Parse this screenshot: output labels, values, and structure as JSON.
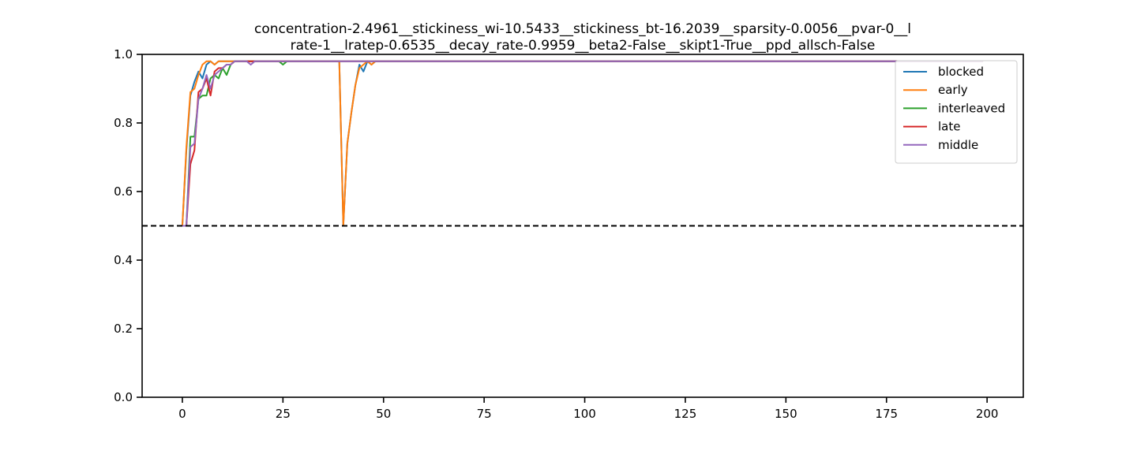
{
  "chart_data": {
    "type": "line",
    "title_lines": [
      "concentration-2.4961__stickiness_wi-10.5433__stickiness_bt-16.2039__sparsity-0.0056__pvar-0__l",
      "rate-1__lratep-0.6535__decay_rate-0.9959__beta2-False__skipt1-True__ppd_allsch-False"
    ],
    "xlabel": "",
    "ylabel": "",
    "xlim": [
      -10,
      209
    ],
    "ylim": [
      0,
      1
    ],
    "x_ticks": [
      0,
      25,
      50,
      75,
      100,
      125,
      150,
      175,
      200
    ],
    "y_ticks": [
      0.0,
      0.2,
      0.4,
      0.6,
      0.8,
      1.0
    ],
    "x_tick_labels": [
      "0",
      "25",
      "50",
      "75",
      "100",
      "125",
      "150",
      "175",
      "200"
    ],
    "y_tick_labels": [
      "0.0",
      "0.2",
      "0.4",
      "0.6",
      "0.8",
      "1.0"
    ],
    "grid": false,
    "legend_position": "top-right",
    "reference_line": {
      "y": 0.5,
      "style": "dashed",
      "color": "#000000"
    },
    "series": [
      {
        "name": "blocked",
        "color": "#1f77b4",
        "points": [
          [
            0,
            0.5
          ],
          [
            1,
            0.72
          ],
          [
            2,
            0.88
          ],
          [
            3,
            0.92
          ],
          [
            4,
            0.95
          ],
          [
            5,
            0.93
          ],
          [
            6,
            0.97
          ],
          [
            7,
            0.98
          ],
          [
            8,
            0.97
          ],
          [
            9,
            0.98
          ],
          [
            10,
            0.98
          ],
          [
            12,
            0.98
          ],
          [
            15,
            0.98
          ],
          [
            20,
            0.98
          ],
          [
            25,
            0.98
          ],
          [
            30,
            0.98
          ],
          [
            35,
            0.98
          ],
          [
            39,
            0.98
          ],
          [
            40,
            0.5
          ],
          [
            41,
            0.74
          ],
          [
            42,
            0.83
          ],
          [
            43,
            0.91
          ],
          [
            44,
            0.97
          ],
          [
            45,
            0.95
          ],
          [
            46,
            0.98
          ],
          [
            47,
            0.97
          ],
          [
            48,
            0.98
          ],
          [
            60,
            0.98
          ],
          [
            100,
            0.98
          ],
          [
            150,
            0.98
          ],
          [
            199,
            0.98
          ]
        ]
      },
      {
        "name": "early",
        "color": "#ff7f0e",
        "points": [
          [
            0,
            0.5
          ],
          [
            1,
            0.73
          ],
          [
            2,
            0.89
          ],
          [
            3,
            0.9
          ],
          [
            4,
            0.94
          ],
          [
            5,
            0.97
          ],
          [
            6,
            0.98
          ],
          [
            7,
            0.98
          ],
          [
            8,
            0.97
          ],
          [
            9,
            0.98
          ],
          [
            10,
            0.98
          ],
          [
            12,
            0.98
          ],
          [
            15,
            0.98
          ],
          [
            20,
            0.98
          ],
          [
            25,
            0.98
          ],
          [
            30,
            0.98
          ],
          [
            35,
            0.98
          ],
          [
            39,
            0.98
          ],
          [
            40,
            0.5
          ],
          [
            41,
            0.74
          ],
          [
            42,
            0.83
          ],
          [
            43,
            0.91
          ],
          [
            44,
            0.96
          ],
          [
            45,
            0.97
          ],
          [
            46,
            0.98
          ],
          [
            47,
            0.97
          ],
          [
            48,
            0.98
          ],
          [
            60,
            0.98
          ],
          [
            100,
            0.98
          ],
          [
            150,
            0.98
          ],
          [
            199,
            0.98
          ]
        ]
      },
      {
        "name": "interleaved",
        "color": "#2ca02c",
        "points": [
          [
            0,
            0.5
          ],
          [
            1,
            0.5
          ],
          [
            2,
            0.76
          ],
          [
            3,
            0.76
          ],
          [
            4,
            0.87
          ],
          [
            5,
            0.88
          ],
          [
            6,
            0.88
          ],
          [
            7,
            0.93
          ],
          [
            8,
            0.94
          ],
          [
            9,
            0.93
          ],
          [
            10,
            0.96
          ],
          [
            11,
            0.94
          ],
          [
            12,
            0.97
          ],
          [
            13,
            0.98
          ],
          [
            15,
            0.98
          ],
          [
            20,
            0.98
          ],
          [
            24,
            0.98
          ],
          [
            25,
            0.97
          ],
          [
            26,
            0.98
          ],
          [
            30,
            0.98
          ],
          [
            40,
            0.98
          ],
          [
            60,
            0.98
          ],
          [
            100,
            0.98
          ],
          [
            150,
            0.98
          ],
          [
            199,
            0.98
          ]
        ]
      },
      {
        "name": "late",
        "color": "#d62728",
        "points": [
          [
            0,
            0.5
          ],
          [
            1,
            0.5
          ],
          [
            2,
            0.68
          ],
          [
            3,
            0.72
          ],
          [
            4,
            0.89
          ],
          [
            5,
            0.9
          ],
          [
            6,
            0.93
          ],
          [
            7,
            0.88
          ],
          [
            8,
            0.95
          ],
          [
            9,
            0.96
          ],
          [
            10,
            0.96
          ],
          [
            11,
            0.97
          ],
          [
            12,
            0.97
          ],
          [
            13,
            0.98
          ],
          [
            15,
            0.98
          ],
          [
            20,
            0.98
          ],
          [
            30,
            0.98
          ],
          [
            40,
            0.98
          ],
          [
            60,
            0.98
          ],
          [
            100,
            0.98
          ],
          [
            150,
            0.98
          ],
          [
            199,
            0.98
          ]
        ]
      },
      {
        "name": "middle",
        "color": "#9467bd",
        "points": [
          [
            0,
            0.5
          ],
          [
            1,
            0.5
          ],
          [
            2,
            0.73
          ],
          [
            3,
            0.74
          ],
          [
            4,
            0.87
          ],
          [
            5,
            0.9
          ],
          [
            6,
            0.94
          ],
          [
            7,
            0.9
          ],
          [
            8,
            0.94
          ],
          [
            9,
            0.95
          ],
          [
            10,
            0.96
          ],
          [
            11,
            0.97
          ],
          [
            12,
            0.97
          ],
          [
            13,
            0.98
          ],
          [
            15,
            0.98
          ],
          [
            16,
            0.98
          ],
          [
            17,
            0.97
          ],
          [
            18,
            0.98
          ],
          [
            20,
            0.98
          ],
          [
            30,
            0.98
          ],
          [
            40,
            0.98
          ],
          [
            60,
            0.98
          ],
          [
            100,
            0.98
          ],
          [
            150,
            0.98
          ],
          [
            199,
            0.98
          ]
        ]
      }
    ]
  }
}
